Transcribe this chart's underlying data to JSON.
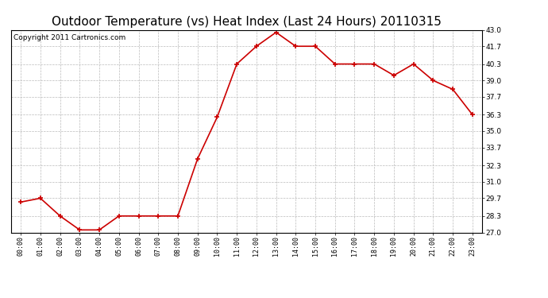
{
  "title": "Outdoor Temperature (vs) Heat Index (Last 24 Hours) 20110315",
  "copyright_text": "Copyright 2011 Cartronics.com",
  "x_labels": [
    "00:00",
    "01:00",
    "02:00",
    "03:00",
    "04:00",
    "05:00",
    "06:00",
    "07:00",
    "08:00",
    "09:00",
    "10:00",
    "11:00",
    "12:00",
    "13:00",
    "14:00",
    "15:00",
    "16:00",
    "17:00",
    "18:00",
    "19:00",
    "20:00",
    "21:00",
    "22:00",
    "23:00"
  ],
  "y_values": [
    29.4,
    29.7,
    28.3,
    27.2,
    27.2,
    28.3,
    28.3,
    28.3,
    28.3,
    32.8,
    36.1,
    40.3,
    41.7,
    42.8,
    41.7,
    41.7,
    40.3,
    40.3,
    40.3,
    39.4,
    40.3,
    39.0,
    38.3,
    36.3
  ],
  "line_color": "#cc0000",
  "marker": "+",
  "marker_size": 4,
  "marker_color": "#cc0000",
  "ylim_min": 27.0,
  "ylim_max": 43.0,
  "y_ticks": [
    27.0,
    28.3,
    29.7,
    31.0,
    32.3,
    33.7,
    35.0,
    36.3,
    37.7,
    39.0,
    40.3,
    41.7,
    43.0
  ],
  "background_color": "#ffffff",
  "plot_bg_color": "#ffffff",
  "grid_color": "#bbbbbb",
  "title_fontsize": 11,
  "copyright_fontsize": 6.5
}
